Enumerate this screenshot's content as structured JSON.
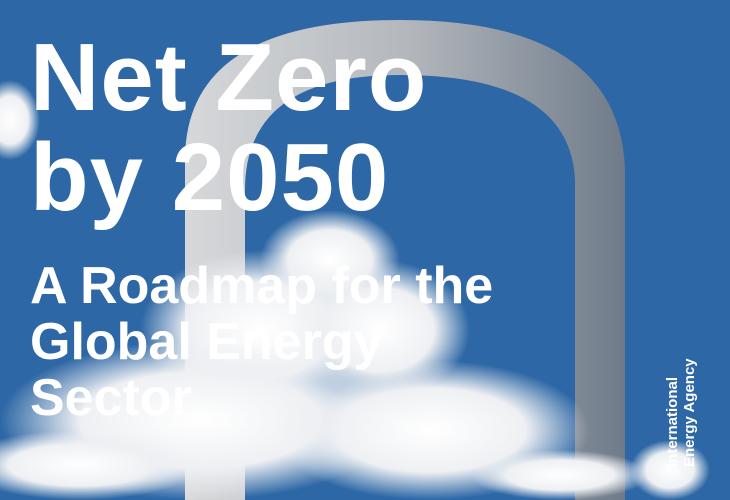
{
  "cover": {
    "title_line1": "Net Zero",
    "title_line2": "by 2050",
    "subtitle_line1": "A Roadmap for the",
    "subtitle_line2": "Global Energy",
    "subtitle_line3": "Sector",
    "publisher_line1": "International",
    "publisher_line2": "Energy Agency"
  },
  "colors": {
    "sky": "#2d67a5",
    "text": "#ffffff",
    "arch": "#b9bcc0"
  }
}
